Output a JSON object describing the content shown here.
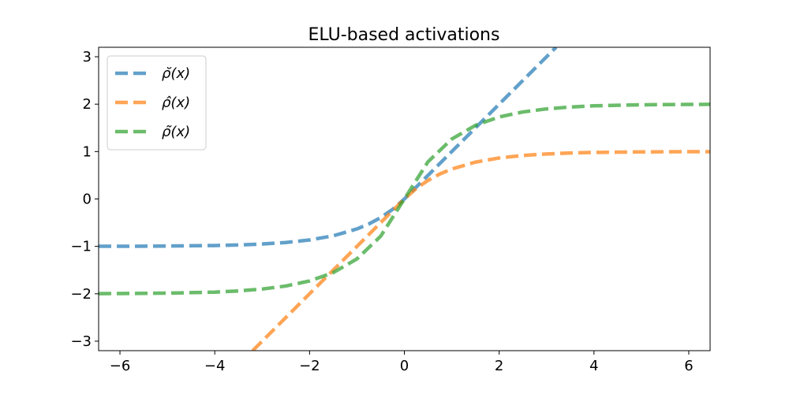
{
  "chart_data": {
    "type": "line",
    "title": "ELU-based activations",
    "xlabel": "",
    "ylabel": "",
    "xlim": [
      -6.45,
      6.45
    ],
    "ylim": [
      -3.2,
      3.2
    ],
    "xticks": [
      -6,
      -4,
      -2,
      0,
      2,
      4,
      6
    ],
    "yticks": [
      -3,
      -2,
      -1,
      0,
      1,
      2,
      3
    ],
    "grid": false,
    "legend_position": "top-left",
    "series": [
      {
        "name": "ρ̆(x)",
        "color": "#1f77b4",
        "linestyle": "dashed",
        "x": [
          -6.45,
          -6,
          -5,
          -4,
          -3.5,
          -3,
          -2.5,
          -2,
          -1.5,
          -1,
          -0.75,
          -0.5,
          -0.25,
          0,
          1,
          2,
          3,
          3.2
        ],
        "y": [
          -0.998,
          -0.998,
          -0.993,
          -0.982,
          -0.97,
          -0.95,
          -0.918,
          -0.865,
          -0.777,
          -0.632,
          -0.528,
          -0.393,
          -0.221,
          0,
          1,
          2,
          3,
          3.2
        ]
      },
      {
        "name": "ρ̂(x)",
        "color": "#ff7f0e",
        "linestyle": "dashed",
        "x": [
          -3.2,
          -3,
          -2,
          -1,
          0,
          0.25,
          0.5,
          0.75,
          1,
          1.5,
          2,
          2.5,
          3,
          3.5,
          4,
          5,
          6,
          6.45
        ],
        "y": [
          -3.2,
          -3,
          -2,
          -1,
          0,
          0.221,
          0.393,
          0.528,
          0.632,
          0.777,
          0.865,
          0.918,
          0.95,
          0.97,
          0.982,
          0.993,
          0.998,
          0.998
        ]
      },
      {
        "name": "ρ̃(x)",
        "color": "#2ca02c",
        "linestyle": "dashed",
        "x": [
          -6.45,
          -6,
          -5,
          -4,
          -3.5,
          -3,
          -2.5,
          -2,
          -1.5,
          -1,
          -0.5,
          0,
          0.5,
          1,
          1.5,
          2,
          2.5,
          3,
          3.5,
          4,
          5,
          6,
          6.45
        ],
        "y": [
          -1.996,
          -1.995,
          -1.987,
          -1.965,
          -1.94,
          -1.9,
          -1.836,
          -1.73,
          -1.554,
          -1.264,
          -0.786,
          0,
          0.786,
          1.264,
          1.554,
          1.73,
          1.836,
          1.9,
          1.94,
          1.965,
          1.987,
          1.995,
          1.996
        ]
      }
    ]
  }
}
